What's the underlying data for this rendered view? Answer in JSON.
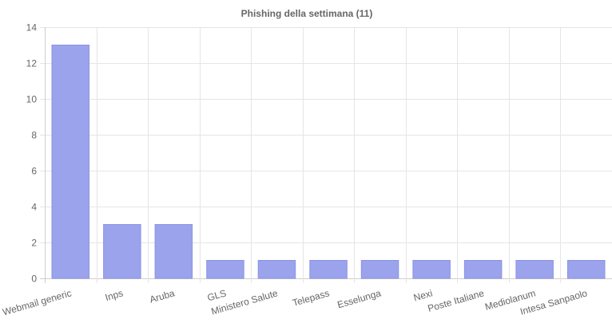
{
  "chart_data": {
    "type": "bar",
    "title": "Phishing della settimana (11)",
    "xlabel": "",
    "ylabel": "",
    "categories": [
      "Webmail generic",
      "Inps",
      "Aruba",
      "GLS",
      "Ministero Salute",
      "Telepass",
      "Esselunga",
      "Nexi",
      "Poste Italiane",
      "Mediolanum",
      "Intesa Sanpaolo"
    ],
    "values": [
      13,
      3,
      3,
      1,
      1,
      1,
      1,
      1,
      1,
      1,
      1
    ],
    "ylim": [
      0,
      14
    ],
    "yticks": [
      0,
      2,
      4,
      6,
      8,
      10,
      12,
      14
    ],
    "grid": true,
    "legend": "none",
    "colors": {
      "bar_fill": "#9ba3ec",
      "bar_stroke": "#8a93e6",
      "text": "#666666",
      "grid": "#e5e5e5"
    }
  }
}
